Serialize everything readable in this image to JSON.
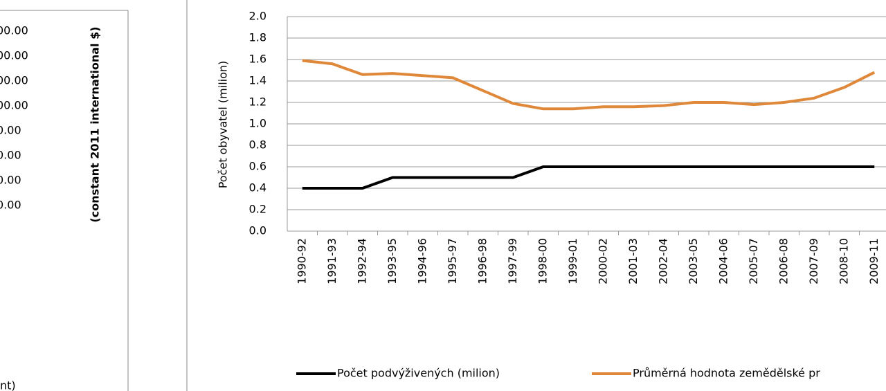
{
  "left_panel": {
    "tick_labels": [
      "00.00",
      "00.00",
      "00.00",
      "00.00",
      "0.00",
      "0.00",
      "0.00",
      "0.00"
    ],
    "axis_label": "(constant 2011 international $)",
    "footer": "nt)"
  },
  "chart_data": {
    "type": "line",
    "ylabel": "Počet obyvatel (milion)",
    "categories": [
      "1990-92",
      "1991-93",
      "1992-94",
      "1993-95",
      "1994-96",
      "1995-97",
      "1996-98",
      "1997-99",
      "1998-00",
      "1999-01",
      "2000-02",
      "2001-03",
      "2002-04",
      "2003-05",
      "2004-06",
      "2005-07",
      "2006-08",
      "2007-09",
      "2008-10",
      "2009-11"
    ],
    "series": [
      {
        "name": "Počet podvýživených (milion)",
        "color": "#000000",
        "values": [
          0.4,
          0.4,
          0.4,
          0.5,
          0.5,
          0.5,
          0.5,
          0.5,
          0.6,
          0.6,
          0.6,
          0.6,
          0.6,
          0.6,
          0.6,
          0.6,
          0.6,
          0.6,
          0.6,
          0.6
        ]
      },
      {
        "name": "Průměrná hodnota zemědělské pr",
        "color": "#e0883a",
        "values": [
          1.59,
          1.56,
          1.46,
          1.47,
          1.45,
          1.43,
          1.31,
          1.19,
          1.14,
          1.14,
          1.16,
          1.16,
          1.17,
          1.2,
          1.2,
          1.18,
          1.2,
          1.24,
          1.34,
          1.48
        ]
      }
    ],
    "ylim": [
      0,
      2
    ],
    "yticks": [
      {
        "value": 0,
        "label": "0.0"
      },
      {
        "value": 0.2,
        "label": "0.2"
      },
      {
        "value": 0.4,
        "label": "0.4"
      },
      {
        "value": 0.6,
        "label": "0.6"
      },
      {
        "value": 0.8,
        "label": "0.8"
      },
      {
        "value": 1,
        "label": "1.0"
      },
      {
        "value": 1.2,
        "label": "1.2"
      },
      {
        "value": 1.4,
        "label": "1.4"
      },
      {
        "value": 1.6,
        "label": "1.6"
      },
      {
        "value": 1.8,
        "label": "1.8"
      },
      {
        "value": 2,
        "label": "2.0"
      }
    ],
    "grid": true,
    "legend": "bottom"
  }
}
